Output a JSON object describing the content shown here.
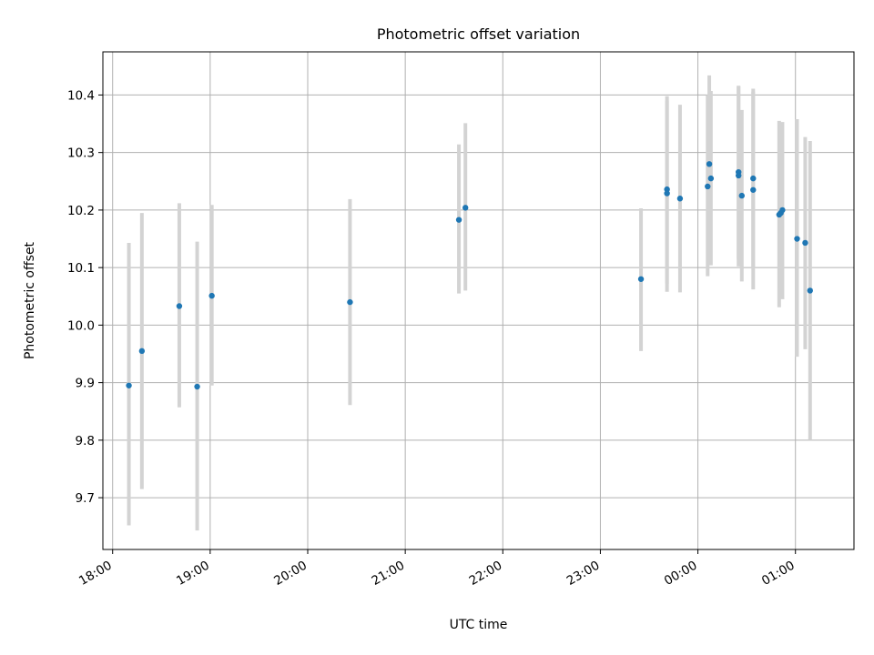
{
  "chart_data": {
    "type": "scatter",
    "title": "Photometric offset variation",
    "xlabel": "UTC time",
    "ylabel": "Photometric offset",
    "x_axis_kind": "time",
    "x_start": "18:00",
    "x_range": [
      "17:54",
      "01:36"
    ],
    "ylim": [
      9.61,
      10.475
    ],
    "x_ticks": [
      "18:00",
      "19:00",
      "20:00",
      "21:00",
      "22:00",
      "23:00",
      "00:00",
      "01:00"
    ],
    "y_ticks": [
      9.7,
      9.8,
      9.9,
      10.0,
      10.1,
      10.2,
      10.3,
      10.4
    ],
    "grid": true,
    "marker_color": "#1f77b4",
    "errorbar_color": "#d3d3d3",
    "points": [
      {
        "t": "18:10",
        "y": 9.895,
        "lo": 9.652,
        "hi": 10.143
      },
      {
        "t": "18:18",
        "y": 9.955,
        "lo": 9.715,
        "hi": 10.195
      },
      {
        "t": "18:41",
        "y": 10.033,
        "lo": 9.857,
        "hi": 10.212
      },
      {
        "t": "18:52",
        "y": 9.893,
        "lo": 9.643,
        "hi": 10.145
      },
      {
        "t": "19:01",
        "y": 10.051,
        "lo": 9.895,
        "hi": 10.209
      },
      {
        "t": "20:26",
        "y": 10.04,
        "lo": 9.861,
        "hi": 10.219
      },
      {
        "t": "21:33",
        "y": 10.183,
        "lo": 10.055,
        "hi": 10.314
      },
      {
        "t": "21:37",
        "y": 10.204,
        "lo": 10.06,
        "hi": 10.351
      },
      {
        "t": "23:25",
        "y": 10.08,
        "lo": 9.955,
        "hi": 10.203
      },
      {
        "t": "23:41",
        "y": 10.236,
        "lo": 10.072,
        "hi": 10.398
      },
      {
        "t": "23:41",
        "y": 10.229,
        "lo": 10.058,
        "hi": 10.39
      },
      {
        "t": "23:49",
        "y": 10.22,
        "lo": 10.057,
        "hi": 10.383
      },
      {
        "t": "00:06",
        "y": 10.241,
        "lo": 10.085,
        "hi": 10.4
      },
      {
        "t": "00:07",
        "y": 10.28,
        "lo": 10.123,
        "hi": 10.434
      },
      {
        "t": "00:08",
        "y": 10.255,
        "lo": 10.104,
        "hi": 10.407
      },
      {
        "t": "00:25",
        "y": 10.266,
        "lo": 10.115,
        "hi": 10.416
      },
      {
        "t": "00:25",
        "y": 10.26,
        "lo": 10.102,
        "hi": 10.415
      },
      {
        "t": "00:27",
        "y": 10.225,
        "lo": 10.076,
        "hi": 10.374
      },
      {
        "t": "00:34",
        "y": 10.235,
        "lo": 10.062,
        "hi": 10.406
      },
      {
        "t": "00:34",
        "y": 10.255,
        "lo": 10.1,
        "hi": 10.411
      },
      {
        "t": "00:50",
        "y": 10.192,
        "lo": 10.031,
        "hi": 10.355
      },
      {
        "t": "00:51",
        "y": 10.195,
        "lo": 10.063,
        "hi": 10.348
      },
      {
        "t": "00:52",
        "y": 10.2,
        "lo": 10.045,
        "hi": 10.353
      },
      {
        "t": "01:01",
        "y": 10.15,
        "lo": 9.945,
        "hi": 10.358
      },
      {
        "t": "01:06",
        "y": 10.143,
        "lo": 9.958,
        "hi": 10.327
      },
      {
        "t": "01:09",
        "y": 10.06,
        "lo": 9.8,
        "hi": 10.32
      }
    ]
  }
}
